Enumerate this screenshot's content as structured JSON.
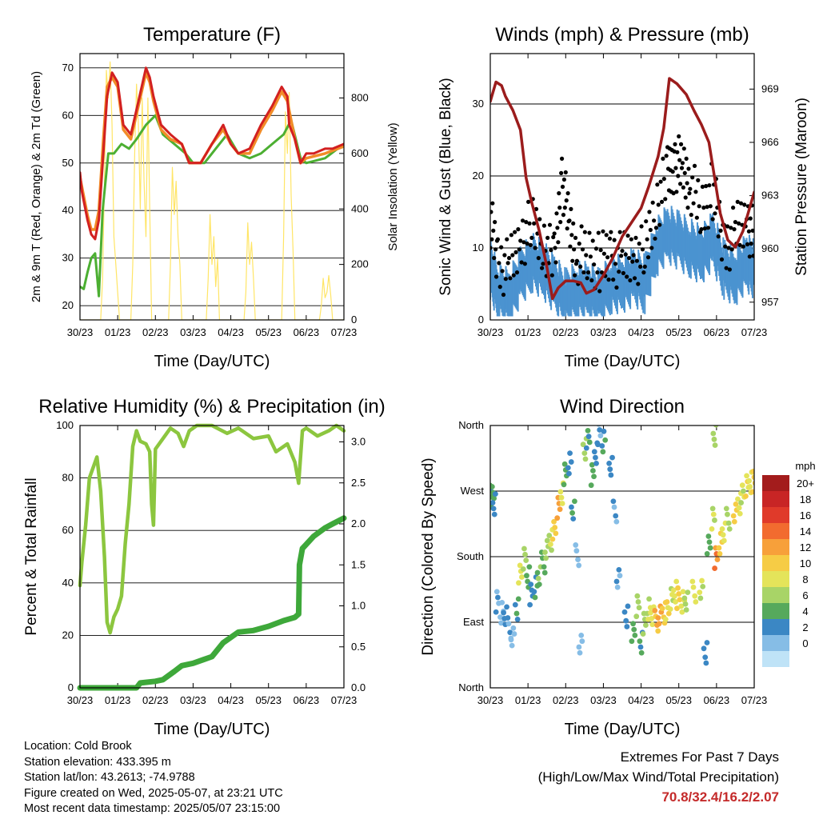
{
  "chart_data": [
    {
      "type": "line",
      "title": "Temperature (F)",
      "xlabel": "Time (Day/UTC)",
      "ylabel": "2m & 9m T (Red, Orange) & 2m Td (Green)",
      "y2label": "Solar Insolation (Yellow)",
      "x_ticks": [
        "30/23",
        "01/23",
        "02/23",
        "03/23",
        "04/23",
        "05/23",
        "06/23",
        "07/23"
      ],
      "ylim": [
        17,
        73
      ],
      "y_ticks": [
        20,
        30,
        40,
        50,
        60,
        70
      ],
      "y2lim": [
        0,
        960
      ],
      "y2_ticks": [
        0,
        200,
        400,
        600,
        800
      ],
      "grid": "horizontal",
      "series": [
        {
          "color": "#d22020",
          "x_days": [
            0,
            0.05,
            0.1,
            0.2,
            0.3,
            0.4,
            0.5,
            0.62,
            0.72,
            0.85,
            1.0,
            1.15,
            1.35,
            1.55,
            1.75,
            1.85,
            1.95,
            2.15,
            2.4,
            2.7,
            2.9,
            3.2,
            3.5,
            3.8,
            4.0,
            4.2,
            4.5,
            4.8,
            5.1,
            5.35,
            5.5,
            5.55,
            5.7,
            5.85,
            6.0,
            6.2,
            6.5,
            6.7,
            7.0
          ],
          "values": [
            48,
            44,
            42,
            38,
            35,
            34,
            38,
            52,
            64,
            69,
            67,
            58,
            56,
            63,
            70,
            68,
            64,
            58,
            56,
            54,
            50,
            50,
            54,
            58,
            54,
            52,
            53,
            58,
            62,
            66,
            64,
            58,
            55,
            50,
            52,
            52,
            53,
            53,
            54
          ]
        },
        {
          "color": "#f28c28",
          "x_days": [
            0,
            0.1,
            0.2,
            0.3,
            0.4,
            0.5,
            0.62,
            0.72,
            0.85,
            1.0,
            1.15,
            1.35,
            1.55,
            1.75,
            1.85,
            1.95,
            2.15,
            2.4,
            2.7,
            2.9,
            3.2,
            3.5,
            3.8,
            4.0,
            4.2,
            4.5,
            4.8,
            5.1,
            5.35,
            5.5,
            5.7,
            5.85,
            6.0,
            6.5,
            7.0
          ],
          "values": [
            47,
            43,
            39,
            36,
            36,
            40,
            55,
            66,
            68,
            66,
            57,
            55,
            62,
            69,
            67,
            63,
            57,
            55,
            54,
            50,
            50,
            54,
            57,
            54,
            52,
            52,
            57,
            61,
            65,
            63,
            55,
            50,
            51,
            52,
            53.5
          ]
        },
        {
          "color": "#4caf32",
          "x_days": [
            0,
            0.1,
            0.2,
            0.3,
            0.4,
            0.5,
            0.6,
            0.75,
            0.9,
            1.1,
            1.3,
            1.5,
            1.75,
            2.0,
            2.2,
            2.5,
            2.8,
            3.0,
            3.3,
            3.6,
            3.9,
            4.2,
            4.5,
            4.8,
            5.1,
            5.4,
            5.6,
            5.85,
            6.0,
            6.5,
            7.0
          ],
          "values": [
            24,
            23.5,
            27,
            30,
            31,
            22,
            40,
            52,
            52,
            54,
            53,
            55,
            58,
            60,
            56,
            54,
            52,
            50,
            50,
            53,
            56,
            52,
            51,
            52,
            54,
            56,
            59,
            51,
            50,
            51,
            54
          ]
        },
        {
          "color": "#ffe566",
          "x_days": [
            0,
            0.55,
            0.6,
            0.65,
            0.7,
            0.75,
            0.8,
            0.85,
            0.9,
            0.95,
            1.0,
            1.05,
            1.35,
            1.4,
            1.45,
            1.5,
            1.55,
            1.6,
            1.65,
            1.7,
            1.75,
            1.8,
            1.85,
            1.9,
            2.35,
            2.4,
            2.45,
            2.5,
            2.55,
            2.6,
            2.65,
            2.7,
            3.35,
            3.4,
            3.45,
            3.5,
            3.55,
            3.6,
            3.65,
            3.7,
            4.35,
            4.4,
            4.45,
            4.5,
            4.55,
            4.6,
            4.65,
            4.7,
            5.35,
            5.4,
            5.45,
            5.5,
            5.55,
            5.6,
            5.65,
            5.7,
            6.35,
            6.4,
            6.45,
            6.5,
            6.55,
            6.6,
            6.65,
            6.7,
            7.0
          ],
          "values": [
            0,
            0,
            150,
            500,
            900,
            800,
            930,
            700,
            300,
            200,
            100,
            0,
            0,
            200,
            600,
            850,
            700,
            400,
            800,
            500,
            300,
            800,
            400,
            0,
            0,
            200,
            550,
            380,
            500,
            300,
            200,
            0,
            0,
            150,
            380,
            200,
            300,
            120,
            220,
            0,
            0,
            100,
            350,
            200,
            280,
            150,
            0,
            0,
            0,
            300,
            750,
            600,
            820,
            450,
            250,
            0,
            0,
            50,
            150,
            80,
            100,
            160,
            90,
            0,
            0
          ]
        }
      ]
    },
    {
      "type": "line",
      "title": "Winds (mph) & Pressure (mb)",
      "xlabel": "Time (Day/UTC)",
      "ylabel": "Sonic Wind & Gust (Blue, Black)",
      "y2label": "Station Pressure (Maroon)",
      "x_ticks": [
        "30/23",
        "01/23",
        "02/23",
        "03/23",
        "04/23",
        "05/23",
        "06/23",
        "07/23"
      ],
      "ylim": [
        0,
        37
      ],
      "y_ticks": [
        0,
        10,
        20,
        30
      ],
      "y2lim": [
        956,
        971
      ],
      "y2_ticks": [
        957,
        960,
        963,
        966,
        969
      ],
      "grid": "horizontal",
      "series": [
        {
          "color": "#9b1c1c",
          "x_days": [
            0,
            0.15,
            0.3,
            0.4,
            0.6,
            0.8,
            0.95,
            1.1,
            1.3,
            1.5,
            1.65,
            1.8,
            2.0,
            2.2,
            2.4,
            2.55,
            2.75,
            3.0,
            3.25,
            3.5,
            3.75,
            4.0,
            4.2,
            4.45,
            4.6,
            4.75,
            4.95,
            5.2,
            5.4,
            5.6,
            5.8,
            5.95,
            6.1,
            6.3,
            6.5,
            6.7,
            7.0
          ],
          "values": [
            968.3,
            969.4,
            969.2,
            968.6,
            967.8,
            966.7,
            964.0,
            962.6,
            961.0,
            959.0,
            957.2,
            957.8,
            958.2,
            958.2,
            958.1,
            957.5,
            957.7,
            958.5,
            959.5,
            960.7,
            961.5,
            962.3,
            963.5,
            965.2,
            966.8,
            969.6,
            969.3,
            968.7,
            967.8,
            967.0,
            966.0,
            964.0,
            962.0,
            960.5,
            960.1,
            961.0,
            963.2
          ]
        },
        {
          "color": "#4b93d0",
          "x_days": [
            0,
            0.2,
            0.5,
            0.8,
            1.1,
            1.4,
            1.7,
            2.0,
            2.3,
            2.6,
            2.9,
            3.2,
            3.5,
            3.8,
            4.1,
            4.4,
            4.7,
            5.0,
            5.3,
            5.6,
            5.9,
            6.2,
            6.5,
            6.8,
            7.0
          ],
          "values": [
            7,
            4,
            3,
            6,
            8,
            7,
            5,
            3,
            4,
            4,
            3,
            5,
            5,
            6,
            5,
            10,
            12,
            11,
            10,
            9,
            11,
            7,
            6,
            8,
            7
          ]
        },
        {
          "color": "#000000",
          "x_days": [
            0,
            0.2,
            0.5,
            0.8,
            1.1,
            1.4,
            1.7,
            1.9,
            2.1,
            2.3,
            2.6,
            2.9,
            3.2,
            3.5,
            3.8,
            4.1,
            4.4,
            4.7,
            4.9,
            5.1,
            5.3,
            5.6,
            5.9,
            6.2,
            6.5,
            6.8,
            7.0
          ],
          "values": [
            14,
            8,
            7,
            11,
            13,
            11,
            8,
            20,
            13,
            9,
            9,
            8,
            9,
            8,
            9,
            9,
            16,
            20,
            22,
            21,
            19,
            15,
            18,
            10,
            12,
            14,
            11
          ]
        }
      ]
    },
    {
      "type": "line",
      "title": "Relative Humidity (%) & Precipitation (in)",
      "xlabel": "Time (Day/UTC)",
      "ylabel": "Percent & Total Rainfall",
      "x_ticks": [
        "30/23",
        "01/23",
        "02/23",
        "03/23",
        "04/23",
        "05/23",
        "06/23",
        "07/23"
      ],
      "ylim": [
        0,
        100
      ],
      "y_ticks": [
        0,
        20,
        40,
        60,
        80,
        100
      ],
      "y2lim": [
        0,
        3.2
      ],
      "y2_ticks": [
        "0.0",
        "0.5",
        "1.0",
        "1.5",
        "2.0",
        "2.5",
        "3.0"
      ],
      "grid": "horizontal",
      "series": [
        {
          "color": "#8cc63f",
          "x_days": [
            0,
            0.05,
            0.15,
            0.25,
            0.35,
            0.45,
            0.55,
            0.65,
            0.72,
            0.8,
            0.9,
            1.0,
            1.1,
            1.2,
            1.3,
            1.4,
            1.5,
            1.6,
            1.75,
            1.85,
            1.9,
            1.95,
            2.0,
            2.2,
            2.4,
            2.6,
            2.75,
            2.9,
            3.1,
            3.5,
            3.9,
            4.2,
            4.6,
            5.0,
            5.2,
            5.5,
            5.7,
            5.8,
            5.9,
            6.0,
            6.3,
            6.6,
            6.8,
            7.0
          ],
          "values": [
            39,
            48,
            62,
            80,
            84,
            88,
            75,
            50,
            25,
            21,
            27,
            30,
            35,
            55,
            70,
            92,
            98,
            94,
            93,
            90,
            70,
            62,
            91,
            95,
            99,
            97,
            92,
            98,
            100,
            100,
            97,
            99,
            95,
            96,
            90,
            93,
            86,
            78,
            98,
            99,
            96,
            98,
            100,
            98
          ]
        },
        {
          "color": "#3ea83a",
          "x_days": [
            0,
            1.5,
            1.6,
            2.0,
            2.2,
            2.5,
            2.7,
            3.0,
            3.5,
            3.8,
            4.2,
            4.6,
            5.0,
            5.4,
            5.7,
            5.8,
            5.82,
            5.9,
            6.0,
            6.2,
            6.5,
            6.7,
            7.0
          ],
          "values": [
            0,
            0,
            0.06,
            0.08,
            0.1,
            0.2,
            0.27,
            0.3,
            0.38,
            0.55,
            0.68,
            0.7,
            0.75,
            0.82,
            0.86,
            0.9,
            1.5,
            1.7,
            1.75,
            1.85,
            1.95,
            2.0,
            2.07
          ]
        }
      ]
    },
    {
      "type": "scatter",
      "title": "Wind Direction",
      "xlabel": "Time (Day/UTC)",
      "ylabel": "Direction (Colored By Speed)",
      "x_ticks": [
        "30/23",
        "01/23",
        "02/23",
        "03/23",
        "04/23",
        "05/23",
        "06/23",
        "07/23"
      ],
      "y_ticks": [
        "North",
        "East",
        "South",
        "West",
        "North"
      ],
      "y_values": [
        0,
        90,
        180,
        270,
        360
      ],
      "colorbar_title": "mph",
      "colorbar_labels": [
        "20+",
        "18",
        "16",
        "14",
        "12",
        "10",
        "8",
        "6",
        "4",
        "2",
        "0"
      ],
      "colorbar_colors": [
        "#a31c1c",
        "#c82525",
        "#e03a2a",
        "#f26b2f",
        "#f7a03a",
        "#f6cc45",
        "#e4e45a",
        "#a8d467",
        "#56a95c",
        "#3b87c4",
        "#86bde6",
        "#bfe3f7"
      ],
      "grid": "horizontal",
      "points": [
        [
          0.0,
          270,
          5
        ],
        [
          0.05,
          260,
          6
        ],
        [
          0.1,
          250,
          4
        ],
        [
          0.2,
          120,
          3
        ],
        [
          0.3,
          105,
          2
        ],
        [
          0.4,
          95,
          4
        ],
        [
          0.5,
          80,
          3
        ],
        [
          0.6,
          70,
          2
        ],
        [
          0.7,
          110,
          5
        ],
        [
          0.8,
          160,
          10
        ],
        [
          0.9,
          175,
          8
        ],
        [
          1.0,
          150,
          6
        ],
        [
          1.1,
          130,
          4
        ],
        [
          1.2,
          140,
          5
        ],
        [
          1.3,
          150,
          7
        ],
        [
          1.4,
          170,
          6
        ],
        [
          1.5,
          190,
          8
        ],
        [
          1.6,
          205,
          9
        ],
        [
          1.7,
          220,
          12
        ],
        [
          1.8,
          245,
          14
        ],
        [
          1.9,
          265,
          10
        ],
        [
          2.0,
          295,
          6
        ],
        [
          2.1,
          310,
          4
        ],
        [
          2.2,
          240,
          5
        ],
        [
          2.3,
          180,
          2
        ],
        [
          2.4,
          60,
          2
        ],
        [
          2.5,
          330,
          8
        ],
        [
          2.6,
          345,
          5
        ],
        [
          2.7,
          290,
          6
        ],
        [
          2.8,
          320,
          4
        ],
        [
          2.9,
          350,
          3
        ],
        [
          3.0,
          340,
          5
        ],
        [
          3.2,
          300,
          4
        ],
        [
          3.3,
          240,
          3
        ],
        [
          3.4,
          150,
          3
        ],
        [
          3.6,
          100,
          4
        ],
        [
          3.8,
          80,
          6
        ],
        [
          3.9,
          110,
          8
        ],
        [
          4.0,
          60,
          5
        ],
        [
          4.1,
          90,
          8
        ],
        [
          4.2,
          110,
          9
        ],
        [
          4.3,
          95,
          10
        ],
        [
          4.4,
          90,
          13
        ],
        [
          4.5,
          100,
          14
        ],
        [
          4.6,
          105,
          12
        ],
        [
          4.7,
          110,
          11
        ],
        [
          4.8,
          120,
          9
        ],
        [
          4.9,
          130,
          10
        ],
        [
          5.0,
          125,
          12
        ],
        [
          5.1,
          120,
          10
        ],
        [
          5.2,
          115,
          8
        ],
        [
          5.4,
          130,
          10
        ],
        [
          5.6,
          135,
          9
        ],
        [
          5.7,
          50,
          4
        ],
        [
          5.8,
          200,
          6
        ],
        [
          5.9,
          230,
          9
        ],
        [
          5.95,
          345,
          8
        ],
        [
          6.0,
          180,
          15
        ],
        [
          6.1,
          200,
          12
        ],
        [
          6.2,
          210,
          10
        ],
        [
          6.3,
          230,
          8
        ],
        [
          6.5,
          240,
          12
        ],
        [
          6.6,
          255,
          10
        ],
        [
          6.7,
          270,
          9
        ],
        [
          6.8,
          275,
          11
        ],
        [
          6.9,
          280,
          10
        ],
        [
          7.0,
          285,
          12
        ]
      ]
    }
  ],
  "footer": {
    "location": "Location: Cold Brook",
    "elevation": "Station elevation: 433.395 m",
    "latlon": "Station lat/lon: 43.2613; -74.9788",
    "created": "Figure created on Wed, 2025-05-07, at 23:21 UTC",
    "recent": "Most recent data timestamp: 2025/05/07 23:15:00"
  },
  "extremes": {
    "line1": "Extremes For Past 7 Days",
    "line2": "(High/Low/Max Wind/Total Precipitation)",
    "values": "70.8/32.4/16.2/2.07"
  }
}
